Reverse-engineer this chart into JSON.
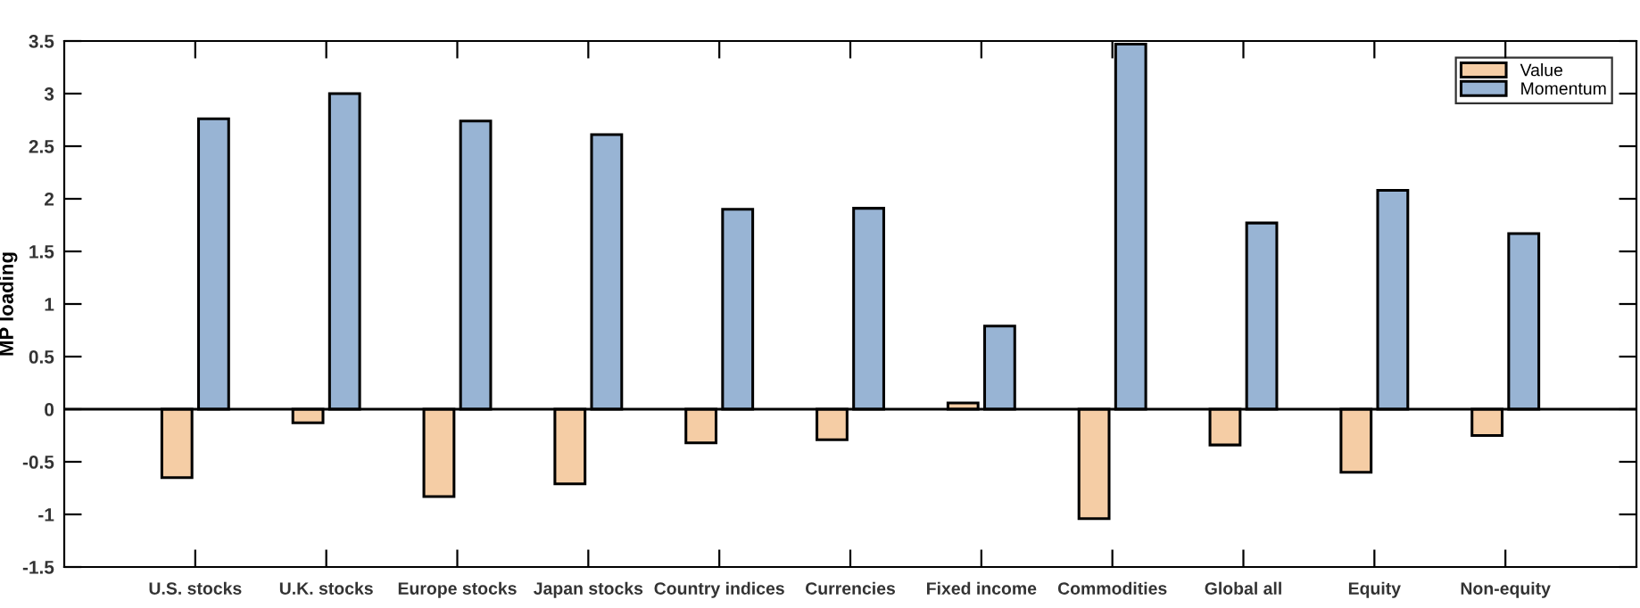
{
  "chart_data": {
    "type": "bar",
    "ylabel": "MP loading",
    "categories": [
      "U.S. stocks",
      "U.K. stocks",
      "Europe stocks",
      "Japan stocks",
      "Country indices",
      "Currencies",
      "Fixed income",
      "Commodities",
      "Global all",
      "Equity",
      "Non-equity"
    ],
    "series": [
      {
        "name": "Value",
        "color": "#f5cda5",
        "values": [
          -0.65,
          -0.13,
          -0.83,
          -0.71,
          -0.32,
          -0.29,
          0.06,
          -1.04,
          -0.34,
          -0.6,
          -0.25
        ]
      },
      {
        "name": "Momentum",
        "color": "#98b4d4",
        "values": [
          2.76,
          3.0,
          2.74,
          2.61,
          1.9,
          1.91,
          0.79,
          3.47,
          1.77,
          2.08,
          1.67
        ]
      }
    ],
    "ylim": [
      -1.5,
      3.5
    ],
    "yticks": [
      -1.5,
      -1,
      -0.5,
      0,
      0.5,
      1,
      1.5,
      2,
      2.5,
      3,
      3.5
    ],
    "legend": "top right"
  }
}
